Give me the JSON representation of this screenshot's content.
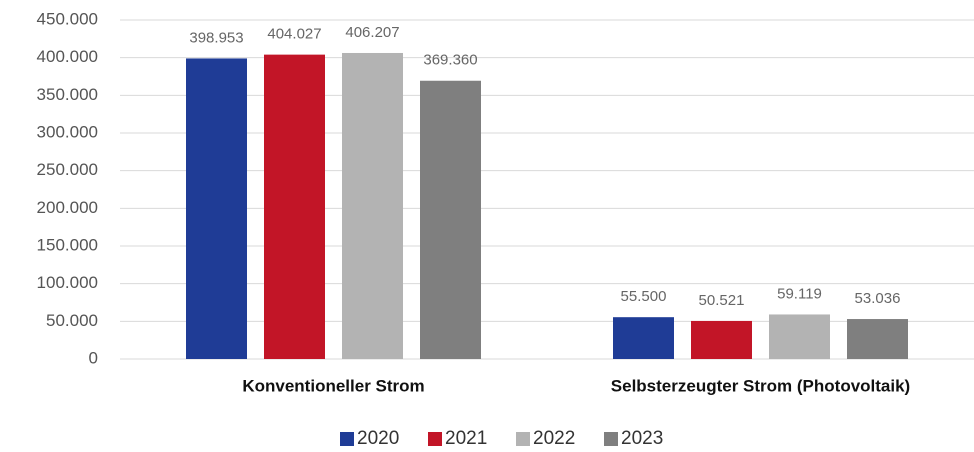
{
  "chart_data": {
    "type": "bar",
    "categories": [
      "Konventioneller Strom",
      "Selbsterzeugter Strom (Photovoltaik)"
    ],
    "series": [
      {
        "name": "2020",
        "color": "#1f3c96",
        "values": [
          398953,
          55500
        ],
        "value_labels": [
          "398.953",
          "55.500"
        ]
      },
      {
        "name": "2021",
        "color": "#c21527",
        "values": [
          404027,
          50521
        ],
        "value_labels": [
          "404.027",
          "50.521"
        ]
      },
      {
        "name": "2022",
        "color": "#b3b3b3",
        "values": [
          406207,
          59119
        ],
        "value_labels": [
          "406.207",
          "59.119"
        ]
      },
      {
        "name": "2023",
        "color": "#7f7f7f",
        "values": [
          369360,
          53036
        ],
        "value_labels": [
          "369.360",
          "53.036"
        ]
      }
    ],
    "ylim": [
      0,
      450000
    ],
    "yticks": [
      0,
      {
        "value": 50000,
        "label": "50.000"
      },
      {
        "value": 100000,
        "label": "100.000"
      },
      {
        "value": 150000,
        "label": "150.000"
      },
      {
        "value": 200000,
        "label": "200.000"
      },
      {
        "value": 250000,
        "label": "250.000"
      },
      {
        "value": 300000,
        "label": "300.000"
      },
      {
        "value": 350000,
        "label": "350.000"
      },
      {
        "value": 400000,
        "label": "400.000"
      },
      {
        "value": 450000,
        "label": "450.000"
      }
    ],
    "grid": true,
    "legend": "bottom"
  }
}
